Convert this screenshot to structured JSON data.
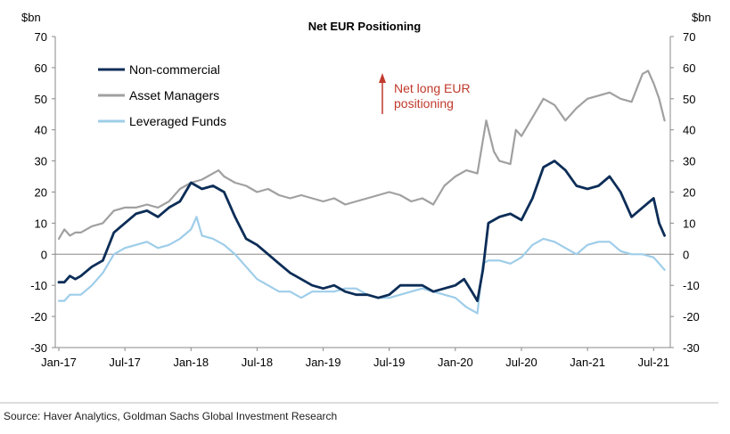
{
  "chart_data": {
    "type": "line",
    "title": "Net EUR Positioning",
    "ylabel_left": "$bn",
    "ylabel_right": "$bn",
    "ylim": [
      -30,
      70
    ],
    "yticks": [
      -30,
      -20,
      -10,
      0,
      10,
      20,
      30,
      40,
      50,
      60,
      70
    ],
    "xlim": [
      0,
      55
    ],
    "xticks": [
      {
        "label": "Jan-17",
        "t": 0
      },
      {
        "label": "Jul-17",
        "t": 6
      },
      {
        "label": "Jan-18",
        "t": 12
      },
      {
        "label": "Jul-18",
        "t": 18
      },
      {
        "label": "Jan-19",
        "t": 24
      },
      {
        "label": "Jul-19",
        "t": 30
      },
      {
        "label": "Jan-20",
        "t": 36
      },
      {
        "label": "Jul-20",
        "t": 42
      },
      {
        "label": "Jan-21",
        "t": 48
      },
      {
        "label": "Jul-21",
        "t": 54
      }
    ],
    "x_unit": "months since Jan-2017",
    "series": [
      {
        "name": "Asset Managers",
        "color": "#a0a0a0",
        "points": [
          [
            0,
            5
          ],
          [
            0.5,
            8
          ],
          [
            1,
            6
          ],
          [
            1.5,
            7
          ],
          [
            2,
            7
          ],
          [
            3,
            9
          ],
          [
            4,
            10
          ],
          [
            5,
            14
          ],
          [
            6,
            15
          ],
          [
            7,
            15
          ],
          [
            8,
            16
          ],
          [
            9,
            15
          ],
          [
            10,
            17
          ],
          [
            11,
            21
          ],
          [
            12,
            23
          ],
          [
            13,
            24
          ],
          [
            14,
            26
          ],
          [
            14.5,
            27
          ],
          [
            15,
            25
          ],
          [
            16,
            23
          ],
          [
            17,
            22
          ],
          [
            18,
            20
          ],
          [
            19,
            21
          ],
          [
            20,
            19
          ],
          [
            21,
            18
          ],
          [
            22,
            19
          ],
          [
            23,
            18
          ],
          [
            24,
            17
          ],
          [
            25,
            18
          ],
          [
            26,
            16
          ],
          [
            27,
            17
          ],
          [
            28,
            18
          ],
          [
            29,
            19
          ],
          [
            30,
            20
          ],
          [
            31,
            19
          ],
          [
            32,
            17
          ],
          [
            33,
            18
          ],
          [
            34,
            16
          ],
          [
            35,
            22
          ],
          [
            36,
            25
          ],
          [
            37,
            27
          ],
          [
            38,
            26
          ],
          [
            38.8,
            43
          ],
          [
            39.5,
            33
          ],
          [
            40,
            30
          ],
          [
            41,
            29
          ],
          [
            41.5,
            40
          ],
          [
            42,
            38
          ],
          [
            43,
            44
          ],
          [
            44,
            50
          ],
          [
            45,
            48
          ],
          [
            46,
            43
          ],
          [
            47,
            47
          ],
          [
            48,
            50
          ],
          [
            49,
            51
          ],
          [
            50,
            52
          ],
          [
            51,
            50
          ],
          [
            52,
            49
          ],
          [
            53,
            58
          ],
          [
            53.5,
            59
          ],
          [
            54,
            55
          ],
          [
            54.5,
            50
          ],
          [
            55,
            43
          ]
        ]
      },
      {
        "name": "Non-commercial",
        "color": "#0c2d57",
        "points": [
          [
            0,
            -9
          ],
          [
            0.5,
            -9
          ],
          [
            1,
            -7
          ],
          [
            1.5,
            -8
          ],
          [
            2,
            -7
          ],
          [
            3,
            -4
          ],
          [
            4,
            -2
          ],
          [
            5,
            7
          ],
          [
            6,
            10
          ],
          [
            7,
            13
          ],
          [
            8,
            14
          ],
          [
            9,
            12
          ],
          [
            10,
            15
          ],
          [
            11,
            17
          ],
          [
            12,
            23
          ],
          [
            13,
            21
          ],
          [
            14,
            22
          ],
          [
            15,
            20
          ],
          [
            16,
            12
          ],
          [
            17,
            5
          ],
          [
            18,
            3
          ],
          [
            19,
            0
          ],
          [
            20,
            -3
          ],
          [
            21,
            -6
          ],
          [
            22,
            -8
          ],
          [
            23,
            -10
          ],
          [
            24,
            -11
          ],
          [
            25,
            -10
          ],
          [
            26,
            -12
          ],
          [
            27,
            -13
          ],
          [
            28,
            -13
          ],
          [
            29,
            -14
          ],
          [
            30,
            -13
          ],
          [
            31,
            -10
          ],
          [
            32,
            -10
          ],
          [
            33,
            -10
          ],
          [
            34,
            -12
          ],
          [
            35,
            -11
          ],
          [
            36,
            -10
          ],
          [
            36.8,
            -8
          ],
          [
            37.5,
            -12
          ],
          [
            38,
            -15
          ],
          [
            38.5,
            -5
          ],
          [
            39,
            10
          ],
          [
            40,
            12
          ],
          [
            41,
            13
          ],
          [
            42,
            11
          ],
          [
            43,
            18
          ],
          [
            44,
            28
          ],
          [
            45,
            30
          ],
          [
            46,
            27
          ],
          [
            47,
            22
          ],
          [
            48,
            21
          ],
          [
            49,
            22
          ],
          [
            50,
            25
          ],
          [
            51,
            20
          ],
          [
            52,
            12
          ],
          [
            53,
            15
          ],
          [
            54,
            18
          ],
          [
            54.5,
            10
          ],
          [
            55,
            6
          ]
        ]
      },
      {
        "name": "Leveraged Funds",
        "color": "#9ecde9",
        "points": [
          [
            0,
            -15
          ],
          [
            0.5,
            -15
          ],
          [
            1,
            -13
          ],
          [
            2,
            -13
          ],
          [
            3,
            -10
          ],
          [
            4,
            -6
          ],
          [
            5,
            0
          ],
          [
            6,
            2
          ],
          [
            7,
            3
          ],
          [
            8,
            4
          ],
          [
            9,
            2
          ],
          [
            10,
            3
          ],
          [
            11,
            5
          ],
          [
            12,
            8
          ],
          [
            12.5,
            12
          ],
          [
            13,
            6
          ],
          [
            14,
            5
          ],
          [
            15,
            3
          ],
          [
            16,
            0
          ],
          [
            17,
            -4
          ],
          [
            18,
            -8
          ],
          [
            19,
            -10
          ],
          [
            20,
            -12
          ],
          [
            21,
            -12
          ],
          [
            22,
            -14
          ],
          [
            23,
            -12
          ],
          [
            24,
            -12
          ],
          [
            25,
            -12
          ],
          [
            26,
            -11
          ],
          [
            27,
            -11
          ],
          [
            28,
            -13
          ],
          [
            29,
            -14
          ],
          [
            30,
            -14
          ],
          [
            31,
            -13
          ],
          [
            32,
            -12
          ],
          [
            33,
            -11
          ],
          [
            34,
            -12
          ],
          [
            35,
            -13
          ],
          [
            36,
            -14
          ],
          [
            37,
            -17
          ],
          [
            38,
            -19
          ],
          [
            38.5,
            -3
          ],
          [
            39,
            -2
          ],
          [
            40,
            -2
          ],
          [
            41,
            -3
          ],
          [
            42,
            -1
          ],
          [
            43,
            3
          ],
          [
            44,
            5
          ],
          [
            45,
            4
          ],
          [
            46,
            2
          ],
          [
            47,
            0
          ],
          [
            48,
            3
          ],
          [
            49,
            4
          ],
          [
            50,
            4
          ],
          [
            51,
            1
          ],
          [
            52,
            0
          ],
          [
            53,
            0
          ],
          [
            54,
            -1
          ],
          [
            54.5,
            -3
          ],
          [
            55,
            -5
          ]
        ]
      }
    ],
    "annotation": {
      "text_line1": "Net long EUR",
      "text_line2": "positioning"
    },
    "source": "Source: Haver Analytics, Goldman Sachs Global Investment Research"
  },
  "legend": [
    {
      "label": "Non-commercial",
      "color": "#0c2d57"
    },
    {
      "label": "Asset Managers",
      "color": "#a0a0a0"
    },
    {
      "label": "Leveraged Funds",
      "color": "#9ecde9"
    }
  ]
}
